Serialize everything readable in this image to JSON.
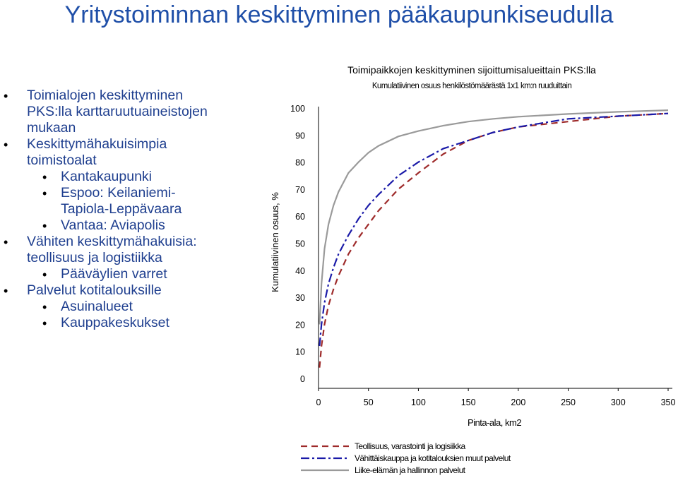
{
  "slide": {
    "title": "Yritystoiminnan keskittyminen pääkaupunkiseudulla",
    "bullets": [
      {
        "level": 1,
        "lines": [
          "Toimialojen keskittyminen",
          "PKS:lla karttaruutuaineistojen",
          "mukaan"
        ]
      },
      {
        "level": 1,
        "lines": [
          "Keskittymähakuisimpia",
          "toimistoalat"
        ]
      },
      {
        "level": 2,
        "lines": [
          "Kantakaupunki"
        ]
      },
      {
        "level": 2,
        "lines": [
          "Espoo: Keilaniemi-",
          "Tapiola-Leppävaara"
        ]
      },
      {
        "level": 2,
        "lines": [
          "Vantaa: Aviapolis"
        ]
      },
      {
        "level": 1,
        "lines": [
          "Vähiten keskittymähakuisia:",
          "teollisuus ja logistiikka"
        ]
      },
      {
        "level": 2,
        "lines": [
          "Pääväylien varret"
        ]
      },
      {
        "level": 1,
        "lines": [
          "Palvelut kotitalouksille"
        ]
      },
      {
        "level": 2,
        "lines": [
          "Asuinalueet"
        ]
      },
      {
        "level": 2,
        "lines": [
          "Kauppakeskukset"
        ]
      }
    ],
    "colors": {
      "title": "#1f4fa8",
      "text": "#1f3f8f"
    }
  },
  "chart_data": {
    "type": "line",
    "title": "Toimipaikkojen keskittyminen sijoittumisalueittain PKS:lla",
    "subtitle": "Kumulatiivinen osuus henkilöstömäärästä 1x1 km:n ruuduittain",
    "xlabel": "Pinta-ala, km2",
    "ylabel": "Kumulatiivinen osuus, %",
    "xlim": [
      0,
      350
    ],
    "ylim": [
      0,
      100
    ],
    "x_ticks": [
      0,
      50,
      100,
      150,
      200,
      250,
      300,
      350
    ],
    "y_ticks": [
      0,
      10,
      20,
      30,
      40,
      50,
      60,
      70,
      80,
      90,
      100
    ],
    "grid": false,
    "legend": "bottom",
    "series": [
      {
        "name": "Teollisuus, varastointi ja logisiikka",
        "color": "#9e2a2a",
        "dash": "9,6",
        "x": [
          1,
          3,
          6,
          10,
          15,
          20,
          30,
          40,
          50,
          60,
          80,
          100,
          125,
          150,
          175,
          200,
          250,
          300,
          350
        ],
        "y": [
          4,
          12,
          20,
          27,
          33,
          38,
          46,
          52,
          57,
          62,
          70,
          76,
          83,
          88,
          91,
          93,
          95,
          97,
          98
        ]
      },
      {
        "name": "Vähittäiskauppa ja kotitalouksien muut palvelut",
        "color": "#1a1aa8",
        "dash": "12,4,3,4",
        "x": [
          1,
          3,
          6,
          10,
          15,
          20,
          30,
          40,
          50,
          60,
          80,
          100,
          125,
          150,
          175,
          200,
          250,
          300,
          350
        ],
        "y": [
          12,
          20,
          28,
          35,
          41,
          46,
          53,
          59,
          64,
          68,
          75,
          80,
          85,
          88,
          91,
          93,
          96,
          97,
          98
        ]
      },
      {
        "name": "Liike-elämän ja hallinnon palvelut",
        "color": "#9a9a9a",
        "dash": "",
        "x": [
          1,
          3,
          6,
          10,
          15,
          20,
          30,
          40,
          50,
          60,
          80,
          100,
          125,
          150,
          175,
          200,
          250,
          300,
          350
        ],
        "y": [
          20,
          35,
          48,
          57,
          64,
          69,
          76,
          80,
          83.5,
          86,
          89.5,
          91.5,
          93.5,
          95,
          96,
          96.8,
          97.8,
          98.6,
          99.2
        ]
      }
    ]
  }
}
